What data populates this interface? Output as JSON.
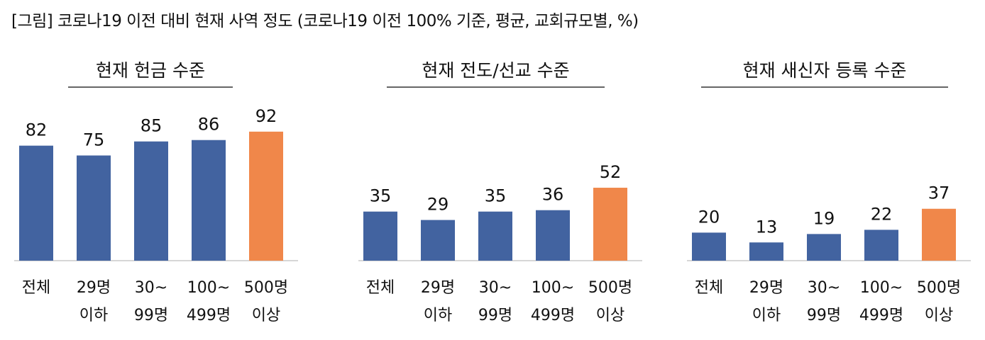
{
  "figure_title": "[그림] 코로나19 이전 대비 현재 사역 정도 (코로나19 이전 100% 기준, 평균, 교회규모별, %)",
  "colors": {
    "bar_default": "#4263a0",
    "bar_highlight": "#f0874a",
    "axis": "#c8c8c8",
    "title_rule": "#333333"
  },
  "chart_data": [
    {
      "type": "bar",
      "title": "현재 헌금 수준",
      "categories": [
        [
          "전체"
        ],
        [
          "29명",
          "이하"
        ],
        [
          "30~",
          "99명"
        ],
        [
          "100~",
          "499명"
        ],
        [
          "500명",
          "이상"
        ]
      ],
      "values": [
        82,
        75,
        85,
        86,
        92
      ],
      "highlight_index": 4,
      "ylim": [
        0,
        100
      ]
    },
    {
      "type": "bar",
      "title": "현재 전도/선교 수준",
      "categories": [
        [
          "전체"
        ],
        [
          "29명",
          "이하"
        ],
        [
          "30~",
          "99명"
        ],
        [
          "100~",
          "499명"
        ],
        [
          "500명",
          "이상"
        ]
      ],
      "values": [
        35,
        29,
        35,
        36,
        52
      ],
      "highlight_index": 4,
      "ylim": [
        0,
        100
      ]
    },
    {
      "type": "bar",
      "title": "현재 새신자 등록 수준",
      "categories": [
        [
          "전체"
        ],
        [
          "29명",
          "이하"
        ],
        [
          "30~",
          "99명"
        ],
        [
          "100~",
          "499명"
        ],
        [
          "500명",
          "이상"
        ]
      ],
      "values": [
        20,
        13,
        19,
        22,
        37
      ],
      "highlight_index": 4,
      "ylim": [
        0,
        100
      ]
    }
  ]
}
